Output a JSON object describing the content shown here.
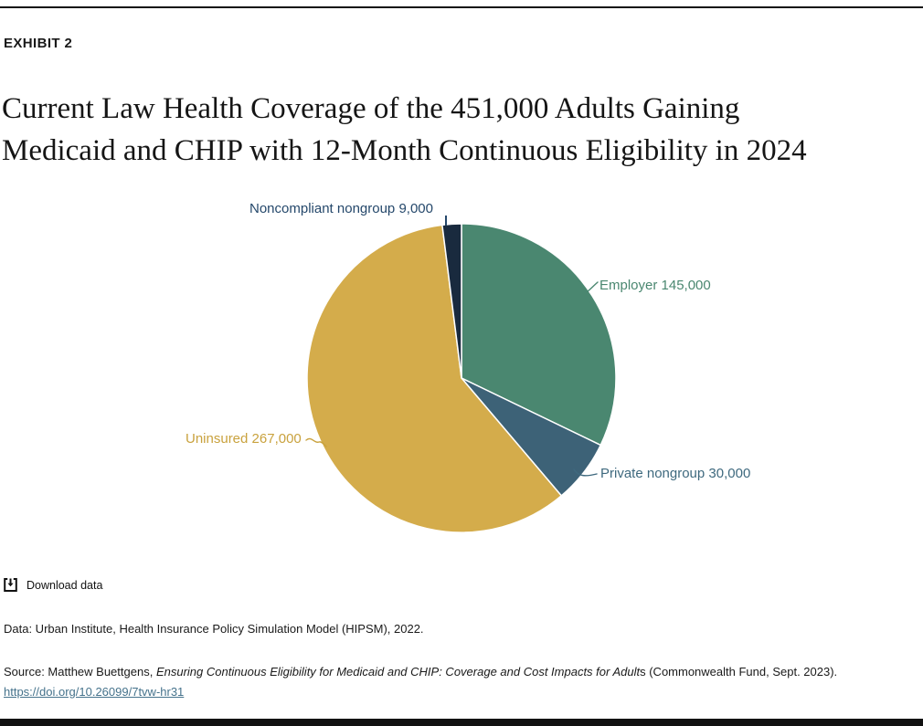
{
  "page": {
    "exhibit_label": "EXHIBIT 2",
    "title_line1": "Current Law Health Coverage of the 451,000 Adults Gaining",
    "title_line2": "Medicaid and CHIP with 12-Month Continuous Eligibility in 2024"
  },
  "chart_data": {
    "type": "pie",
    "title": "Current Law Health Coverage of the 451,000 Adults Gaining Medicaid and CHIP with 12-Month Continuous Eligibility in 2024",
    "total": 451000,
    "start_angle_deg": 0,
    "direction": "clockwise",
    "legend_position": "none",
    "slices": [
      {
        "label": "Employer",
        "value": 145000,
        "display": "Employer 145,000",
        "color": "#4a8770",
        "label_color": "#4a8770"
      },
      {
        "label": "Private nongroup",
        "value": 30000,
        "display": "Private nongroup 30,000",
        "color": "#3d6277",
        "label_color": "#3e697e"
      },
      {
        "label": "Uninsured",
        "value": 267000,
        "display": "Uninsured 267,000",
        "color": "#d4ac4b",
        "label_color": "#c9a23e"
      },
      {
        "label": "Noncompliant nongroup",
        "value": 9000,
        "display": "Noncompliant nongroup 9,000",
        "color": "#192a3e",
        "label_color": "#25486b"
      }
    ]
  },
  "footer": {
    "download_label": "Download data",
    "data_note": "Data: Urban Institute, Health Insurance Policy Simulation Model (HIPSM), 2022.",
    "source_prefix": "Source: Matthew Buettgens, ",
    "source_italic": "Ensuring Continuous Eligibility for Medicaid and CHIP: Coverage and Cost Impacts for Adult",
    "source_suffix": "s (Commonwealth Fund, Sept. 2023).",
    "source_link": "https://doi.org/10.26099/7tvw-hr31"
  },
  "colors": {
    "rule": "#111111",
    "link": "#46738c",
    "text": "#1a1a1a",
    "slice_border": "#ffffff"
  }
}
